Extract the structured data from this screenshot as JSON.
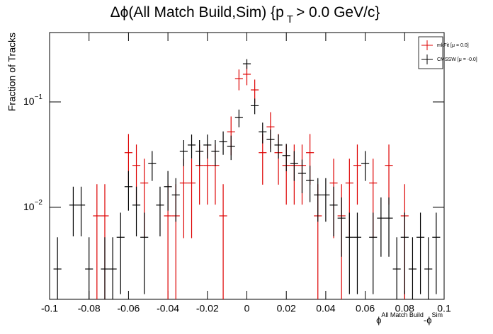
{
  "chart_data": {
    "type": "histogram_errors",
    "title": "Δϕ(All Match Build,Sim) {p",
    "title_subscript": "T",
    "title_end": "> 0.0 GeV/c}",
    "ylabel": "Fraction of Tracks",
    "xlabel": [
      "ϕ",
      "All Match Build",
      "-ϕ",
      "Sim"
    ],
    "log_y": true,
    "xlim": [
      -0.1,
      0.1
    ],
    "ylim": [
      0.00134,
      0.455
    ],
    "xticks": [
      -0.1,
      -0.08,
      -0.06,
      -0.04,
      -0.02,
      0,
      0.02,
      0.04,
      0.06,
      0.08,
      0.1
    ],
    "yticks": [
      {
        "value": 0.01,
        "label": {
          "base": "10",
          "exponent": "−2"
        }
      },
      {
        "value": 0.1,
        "label": {
          "base": "10",
          "exponent": "−1"
        }
      }
    ],
    "legend": "upper right",
    "bins": [
      -0.098,
      -0.094,
      -0.09,
      -0.086,
      -0.082,
      -0.078,
      -0.074,
      -0.07,
      -0.066,
      -0.062,
      -0.058,
      -0.054,
      -0.05,
      -0.046,
      -0.042,
      -0.038,
      -0.034,
      -0.03,
      -0.026,
      -0.022,
      -0.018,
      -0.014,
      -0.01,
      -0.006,
      -0.002,
      0.002,
      0.006,
      0.01,
      0.014,
      0.018,
      0.022,
      0.026,
      0.03,
      0.034,
      0.038,
      0.042,
      0.046,
      0.05,
      0.054,
      0.058,
      0.062,
      0.066,
      0.07,
      0.074,
      0.078,
      0.082,
      0.086,
      0.09,
      0.094,
      0.098
    ],
    "series": [
      {
        "name": "mkFit  [μ = 0.0]",
        "color": "#dd0000",
        "values": [
          null,
          null,
          null,
          null,
          null,
          0.0083,
          0.0083,
          null,
          null,
          0.033,
          0.025,
          0.017,
          null,
          null,
          0.0083,
          0.0083,
          0.017,
          0.017,
          0.025,
          0.025,
          0.025,
          0.0083,
          0.052,
          0.166,
          0.183,
          0.13,
          0.033,
          0.058,
          0.033,
          0.025,
          0.025,
          0.025,
          0.033,
          0.0083,
          null,
          0.017,
          0.0083,
          0.017,
          0.025,
          null,
          0.017,
          null,
          0.025,
          null,
          0.0083,
          null,
          null,
          null,
          null
        ],
        "errors": [
          null,
          null,
          null,
          null,
          null,
          0.0083,
          0.0083,
          null,
          null,
          0.0166,
          0.0144,
          0.0119,
          null,
          null,
          0.0083,
          0.0083,
          0.0119,
          0.0119,
          0.0144,
          0.0144,
          0.0144,
          0.0083,
          0.0208,
          0.0371,
          0.039,
          0.0329,
          0.0166,
          0.0219,
          0.0166,
          0.0144,
          0.0144,
          0.0144,
          0.0166,
          0.0083,
          null,
          0.0119,
          0.0083,
          0.0119,
          0.0144,
          null,
          0.0119,
          null,
          0.0144,
          null,
          0.0083,
          null,
          null,
          null,
          null
        ]
      },
      {
        "name": "CMSSW  [μ = -0.0]",
        "color": "#000000",
        "values": [
          0.0026,
          null,
          0.0105,
          0.0105,
          0.0026,
          null,
          0.0026,
          0.0026,
          0.0052,
          0.0157,
          0.0105,
          0.0052,
          0.026,
          0.0105,
          0.0157,
          0.0131,
          0.034,
          0.039,
          0.034,
          0.039,
          0.034,
          0.042,
          0.038,
          0.071,
          0.23,
          0.092,
          0.052,
          0.044,
          0.039,
          0.031,
          0.026,
          0.021,
          0.018,
          0.0131,
          0.0131,
          0.0105,
          0.0079,
          0.0052,
          0.0052,
          0.026,
          0.0052,
          0.0079,
          0.0079,
          0.0026,
          0.0052,
          0.0026,
          0.0052,
          0.0026,
          0.0052
        ],
        "errors": [
          0.0026,
          null,
          0.0052,
          0.0052,
          0.0026,
          null,
          0.0026,
          0.0026,
          0.0037,
          0.0064,
          0.0052,
          0.0037,
          0.0082,
          0.0052,
          0.0064,
          0.0058,
          0.0094,
          0.01,
          0.0094,
          0.01,
          0.0094,
          0.0105,
          0.0099,
          0.0136,
          0.0245,
          0.0155,
          0.0116,
          0.0107,
          0.01,
          0.009,
          0.0082,
          0.0074,
          0.0068,
          0.0058,
          0.0058,
          0.0052,
          0.0045,
          0.0037,
          0.0037,
          0.0082,
          0.0037,
          0.0045,
          0.0045,
          0.0026,
          0.0037,
          0.0026,
          0.0037,
          0.0026,
          0.0037
        ]
      }
    ]
  }
}
